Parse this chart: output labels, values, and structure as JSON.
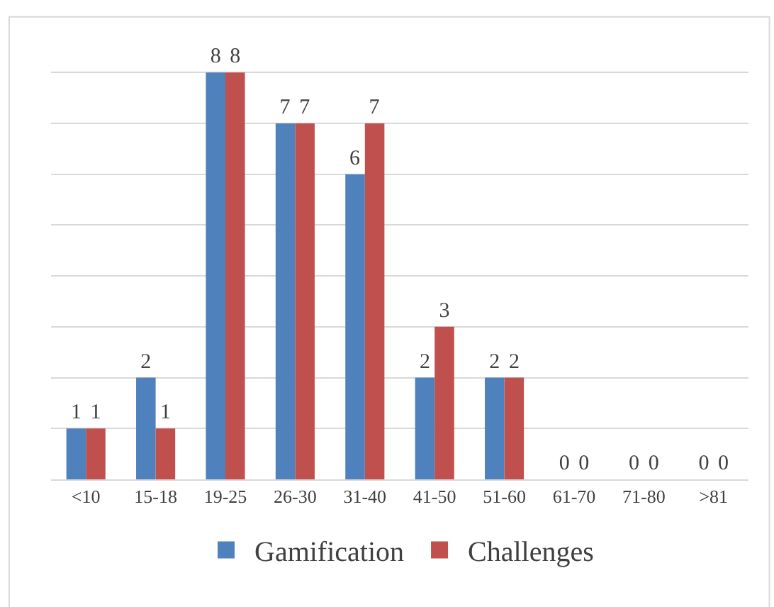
{
  "chart_data": {
    "type": "bar",
    "categories": [
      "<10",
      "15-18",
      "19-25",
      "26-30",
      "31-40",
      "41-50",
      "51-60",
      "61-70",
      "71-80",
      ">81"
    ],
    "series": [
      {
        "name": "Gamification",
        "color": "#4f81bd",
        "values": [
          1,
          2,
          8,
          7,
          6,
          2,
          2,
          0,
          0,
          0
        ]
      },
      {
        "name": "Challenges",
        "color": "#c0504d",
        "values": [
          1,
          1,
          8,
          7,
          7,
          3,
          2,
          0,
          0,
          0
        ]
      }
    ],
    "grid": "y",
    "legend": "bottom",
    "tick_labels": "x",
    "data_labels": true
  }
}
